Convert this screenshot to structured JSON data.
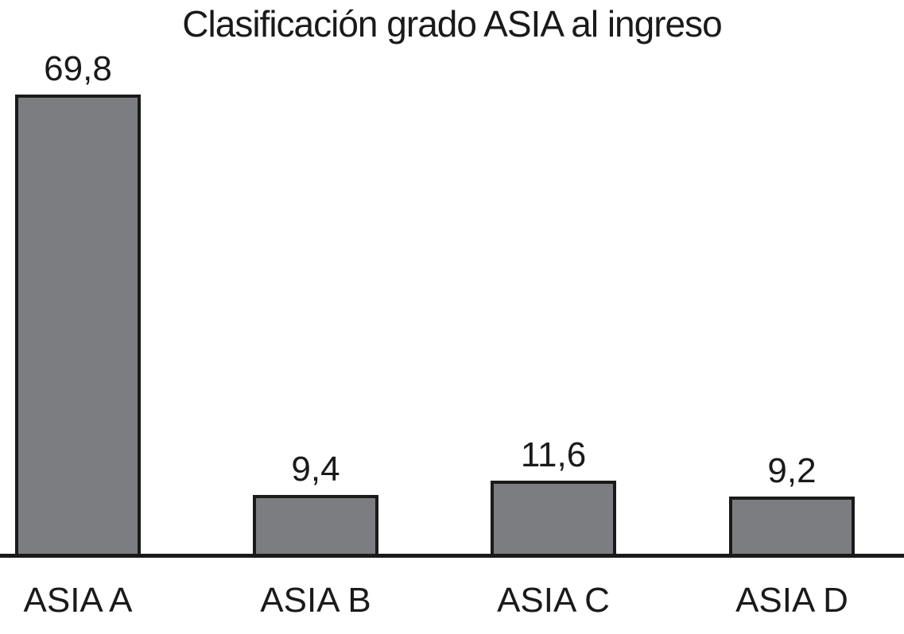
{
  "chart_data": {
    "type": "bar",
    "title": "Clasificación grado ASIA al ingreso",
    "categories": [
      "ASIA A",
      "ASIA B",
      "ASIA C",
      "ASIA D"
    ],
    "values": [
      69.8,
      9.4,
      11.6,
      9.2
    ],
    "value_labels": [
      "69,8",
      "9,4",
      "11,6",
      "9,2"
    ],
    "xlabel": "",
    "ylabel": "",
    "grid": false,
    "legend": "none",
    "decimal_separator": ",",
    "colors": {
      "bar_fill": "#7b7d80",
      "bar_border": "#1a1a1a",
      "axis": "#1a1a1a",
      "text": "#1a1a1a",
      "background": "#ffffff"
    }
  }
}
